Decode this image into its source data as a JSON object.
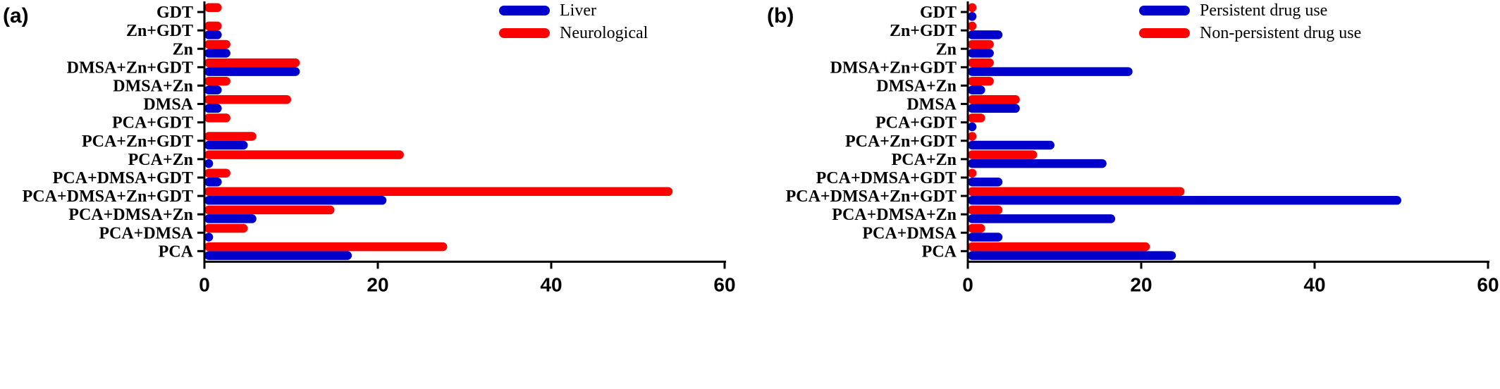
{
  "chart_data": [
    {
      "type": "bar",
      "orientation": "horizontal",
      "panel_label": "(a)",
      "categories": [
        "GDT",
        "Zn+GDT",
        "Zn",
        "DMSA+Zn+GDT",
        "DMSA+Zn",
        "DMSA",
        "PCA+GDT",
        "PCA+Zn+GDT",
        "PCA+Zn",
        "PCA+DMSA+GDT",
        "PCA+DMSA+Zn+GDT",
        "PCA+DMSA+Zn",
        "PCA+DMSA",
        "PCA"
      ],
      "series": [
        {
          "name": "Liver",
          "color": "#0000cc",
          "values": [
            0,
            2,
            3,
            11,
            2,
            2,
            0,
            5,
            1,
            2,
            21,
            6,
            1,
            17
          ]
        },
        {
          "name": "Neurological",
          "color": "#ff0000",
          "values": [
            2,
            2,
            3,
            11,
            3,
            10,
            3,
            6,
            23,
            3,
            54,
            15,
            5,
            28
          ]
        }
      ],
      "xlim": [
        0,
        60
      ],
      "xticks": [
        0,
        20,
        40,
        60
      ],
      "xlabel": "",
      "ylabel": "",
      "legend_position": "top-right"
    },
    {
      "type": "bar",
      "orientation": "horizontal",
      "panel_label": "(b)",
      "categories": [
        "GDT",
        "Zn+GDT",
        "Zn",
        "DMSA+Zn+GDT",
        "DMSA+Zn",
        "DMSA",
        "PCA+GDT",
        "PCA+Zn+GDT",
        "PCA+Zn",
        "PCA+DMSA+GDT",
        "PCA+DMSA+Zn+GDT",
        "PCA+DMSA+Zn",
        "PCA+DMSA",
        "PCA"
      ],
      "series": [
        {
          "name": "Persistent drug use",
          "color": "#0000cc",
          "values": [
            1,
            4,
            3,
            19,
            2,
            6,
            1,
            10,
            16,
            4,
            50,
            17,
            4,
            24
          ]
        },
        {
          "name": "Non-persistent drug use",
          "color": "#ff0000",
          "values": [
            1,
            1,
            3,
            3,
            3,
            6,
            2,
            1,
            8,
            1,
            25,
            4,
            2,
            21
          ]
        }
      ],
      "xlim": [
        0,
        60
      ],
      "xticks": [
        0,
        20,
        40,
        60
      ],
      "xlabel": "",
      "ylabel": "",
      "legend_position": "top-right"
    }
  ]
}
